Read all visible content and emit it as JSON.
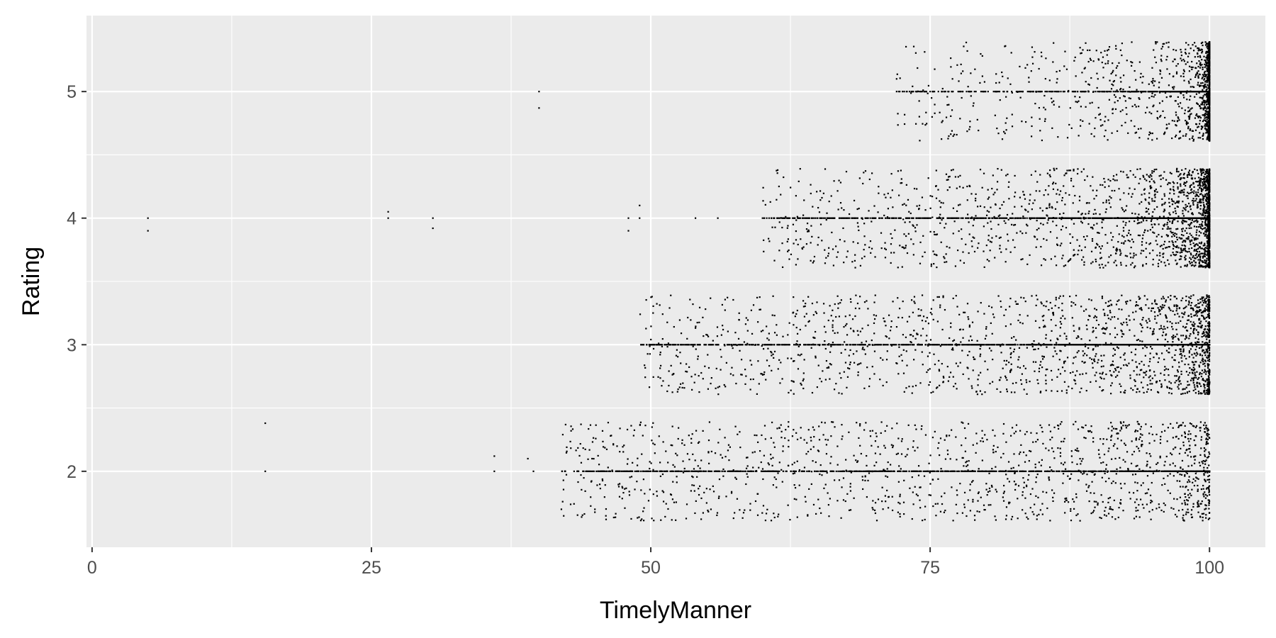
{
  "chart_data": {
    "type": "scatter",
    "xlabel": "TimelyManner",
    "ylabel": "Rating",
    "xlim": [
      -0.5,
      105
    ],
    "ylim": [
      1.4,
      5.6
    ],
    "x_ticks": [
      0,
      25,
      50,
      75,
      100
    ],
    "x_tick_labels": [
      "0",
      "25",
      "50",
      "75",
      "100"
    ],
    "y_ticks": [
      2,
      3,
      4,
      5
    ],
    "y_tick_labels": [
      "2",
      "3",
      "4",
      "5"
    ],
    "grid": true,
    "legend": "none",
    "jitter_height": 0.4,
    "colors": {
      "panel": "#ebebeb",
      "grid": "#ffffff",
      "point": "#000000",
      "tick": "#333333"
    },
    "x": [
      5,
      5,
      15.5,
      15.5,
      26.5,
      26.5,
      30.5,
      30.5,
      36,
      36,
      39,
      39.5,
      40,
      40,
      48,
      48,
      49,
      49,
      42,
      44,
      45,
      46,
      47,
      50,
      52,
      54,
      55,
      56,
      56,
      58,
      60,
      62,
      64,
      54,
      56,
      60,
      62,
      66,
      68,
      70,
      72,
      72,
      74,
      75,
      77,
      81,
      83,
      85,
      87
    ],
    "y": [
      4.0,
      3.9,
      2.38,
      2.0,
      4.05,
      4.0,
      4.0,
      3.92,
      2.12,
      2.0,
      2.1,
      2.0,
      5.0,
      4.87,
      4.0,
      3.9,
      4.1,
      4.0,
      1.7,
      2.0,
      1.7,
      1.62,
      2.0,
      2.0,
      2.05,
      2.0,
      1.75,
      2.0,
      3.0,
      2.0,
      3.0,
      3.0,
      4.0,
      4.0,
      4.0,
      4.0,
      4.0,
      4.0,
      4.0,
      4.0,
      5.0,
      5.1,
      4.0,
      5.0,
      5.1,
      5.0,
      5.0,
      5.0,
      5.2
    ]
  }
}
